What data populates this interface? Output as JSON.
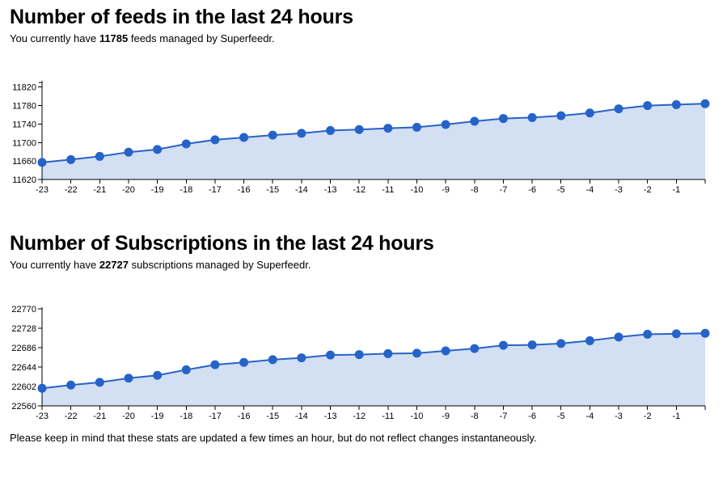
{
  "charts": [
    {
      "title": "Number of feeds in the last 24 hours",
      "desc_prefix": "You currently have ",
      "desc_count": "11785",
      "desc_suffix": " feeds managed by Superfeedr.",
      "chart_data": {
        "type": "area",
        "title": "",
        "xlabel": "",
        "ylabel": "",
        "x": [
          -23,
          -22,
          -21,
          -20,
          -19,
          -18,
          -17,
          -16,
          -15,
          -14,
          -13,
          -12,
          -11,
          -10,
          -9,
          -8,
          -7,
          -6,
          -5,
          -4,
          -3,
          -2,
          -1,
          0
        ],
        "x_tick_labels": [
          "-23",
          "-22",
          "-21",
          "-20",
          "-19",
          "-18",
          "-17",
          "-16",
          "-15",
          "-14",
          "-13",
          "-12",
          "-11",
          "-10",
          "-9",
          "-8",
          "-7",
          "-6",
          "-5",
          "-4",
          "-3",
          "-2",
          "-1",
          ""
        ],
        "y_ticks": [
          11620,
          11660,
          11700,
          11740,
          11780,
          11820
        ],
        "ylim": [
          11620,
          11830
        ],
        "series": [
          {
            "values": [
              11657,
              11663,
              11670,
              11679,
              11685,
              11697,
              11706,
              11711,
              11716,
              11720,
              11726,
              11728,
              11731,
              11733,
              11739,
              11746,
              11752,
              11754,
              11758,
              11764,
              11773,
              11780,
              11782,
              11784
            ]
          }
        ],
        "grid": false
      }
    },
    {
      "title": "Number of Subscriptions in the last 24 hours",
      "desc_prefix": "You currently have ",
      "desc_count": "22727",
      "desc_suffix": " subscriptions managed by Superfeedr.",
      "chart_data": {
        "type": "area",
        "title": "",
        "xlabel": "",
        "ylabel": "",
        "x": [
          -23,
          -22,
          -21,
          -20,
          -19,
          -18,
          -17,
          -16,
          -15,
          -14,
          -13,
          -12,
          -11,
          -10,
          -9,
          -8,
          -7,
          -6,
          -5,
          -4,
          -3,
          -2,
          -1,
          0
        ],
        "x_tick_labels": [
          "-23",
          "-22",
          "-21",
          "-20",
          "-19",
          "-18",
          "-17",
          "-16",
          "-15",
          "-14",
          "-13",
          "-12",
          "-11",
          "-10",
          "-9",
          "-8",
          "-7",
          "-6",
          "-5",
          "-4",
          "-3",
          "-2",
          "-1",
          ""
        ],
        "y_ticks": [
          22560,
          22602,
          22644,
          22686,
          22728,
          22770
        ],
        "ylim": [
          22560,
          22770
        ],
        "series": [
          {
            "values": [
              22598,
              22605,
              22611,
              22620,
              22626,
              22638,
              22649,
              22654,
              22660,
              22664,
              22670,
              22671,
              22673,
              22674,
              22679,
              22684,
              22691,
              22692,
              22695,
              22701,
              22709,
              22715,
              22716,
              22717
            ]
          }
        ],
        "grid": false
      }
    }
  ],
  "footer": "Please keep in mind that these stats are updated a few times an hour, but do not reflect changes instantaneously."
}
